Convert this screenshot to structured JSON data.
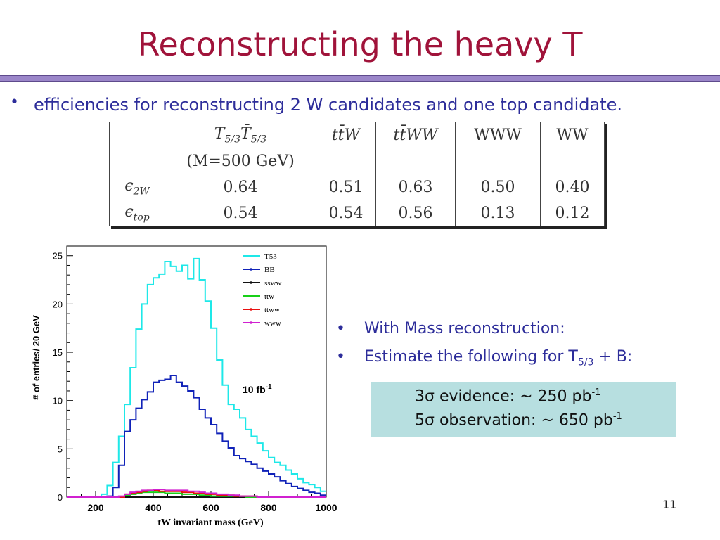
{
  "title": "Reconstructing the heavy T",
  "bullet1": "efficiencies for reconstructing 2 W candidates and one top candidate.",
  "table": {
    "header": [
      "",
      "T5/3T5/3",
      "ttW",
      "ttWW",
      "WWW",
      "WW"
    ],
    "subheader": "(M=500 GeV)",
    "rows": [
      {
        "label": "ε2W",
        "values": [
          "0.64",
          "0.51",
          "0.63",
          "0.50",
          "0.40"
        ]
      },
      {
        "label": "εtop",
        "values": [
          "0.54",
          "0.54",
          "0.56",
          "0.13",
          "0.12"
        ]
      }
    ]
  },
  "chart_data": {
    "type": "line",
    "xlabel": "tW invariant mass (GeV)",
    "ylabel": "# of entries/ 20 GeV",
    "xlim": [
      100,
      1000
    ],
    "ylim": [
      0,
      26
    ],
    "xticks": [
      200,
      400,
      600,
      800,
      1000
    ],
    "yticks": [
      0,
      5,
      10,
      15,
      20,
      25
    ],
    "annotation": "10 fb-1",
    "x": [
      110,
      130,
      150,
      170,
      190,
      210,
      230,
      250,
      270,
      290,
      310,
      330,
      350,
      370,
      390,
      410,
      430,
      450,
      470,
      490,
      510,
      530,
      550,
      570,
      590,
      610,
      630,
      650,
      670,
      690,
      710,
      730,
      750,
      770,
      790,
      810,
      830,
      850,
      870,
      890,
      910,
      930,
      950,
      970,
      990
    ],
    "series": [
      {
        "name": "T53",
        "color": "#1ee8e8",
        "values": [
          0,
          0,
          0,
          0,
          0,
          0,
          0.3,
          1.2,
          3.6,
          6.3,
          9.6,
          13.4,
          17.4,
          20.0,
          22.0,
          22.7,
          23.1,
          24.4,
          23.9,
          23.4,
          24.0,
          22.6,
          24.7,
          22.5,
          20.3,
          17.5,
          14.2,
          11.6,
          9.6,
          9.1,
          8.2,
          7.0,
          6.3,
          5.6,
          4.8,
          4.1,
          3.6,
          3.3,
          2.8,
          2.4,
          1.9,
          1.5,
          1.3,
          1.0,
          0.6
        ]
      },
      {
        "name": "BB",
        "color": "#1022b8",
        "values": [
          0,
          0,
          0,
          0,
          0,
          0,
          0,
          0.1,
          1.0,
          3.3,
          6.8,
          8.0,
          9.2,
          10.1,
          10.9,
          11.9,
          12.1,
          12.2,
          12.6,
          11.9,
          11.5,
          11.0,
          10.3,
          9.1,
          8.2,
          7.5,
          6.6,
          5.8,
          5.1,
          4.3,
          4.0,
          3.7,
          3.4,
          3.0,
          2.7,
          2.4,
          2.1,
          1.7,
          1.4,
          1.1,
          0.9,
          0.7,
          0.5,
          0.4,
          0.2
        ]
      },
      {
        "name": "ssww",
        "color": "#111111",
        "values": [
          0,
          0,
          0,
          0,
          0,
          0,
          0,
          0,
          0,
          0,
          0,
          0,
          0,
          0,
          0,
          0,
          0,
          0,
          0,
          0,
          0,
          0,
          0,
          0,
          0,
          0,
          0,
          0,
          0,
          0,
          0,
          0,
          0,
          0,
          0,
          0,
          0,
          0,
          0,
          0,
          0,
          0,
          0,
          0,
          0
        ]
      },
      {
        "name": "ttw",
        "color": "#18d018",
        "values": [
          0,
          0,
          0,
          0,
          0,
          0,
          0,
          0,
          0,
          0,
          0.2,
          0.3,
          0.4,
          0.5,
          0.5,
          0.5,
          0.5,
          0.4,
          0.4,
          0.4,
          0.3,
          0.3,
          0.3,
          0.2,
          0.2,
          0.1,
          0.1,
          0.1,
          0.1,
          0.1,
          0.1,
          0,
          0,
          0,
          0,
          0,
          0,
          0,
          0,
          0,
          0,
          0,
          0,
          0,
          0
        ]
      },
      {
        "name": "ttww",
        "color": "#e81010",
        "values": [
          0,
          0,
          0,
          0,
          0,
          0,
          0,
          0,
          0,
          0,
          0.3,
          0.4,
          0.5,
          0.6,
          0.7,
          0.7,
          0.6,
          0.6,
          0.6,
          0.6,
          0.5,
          0.5,
          0.4,
          0.4,
          0.3,
          0.3,
          0.2,
          0.2,
          0.2,
          0.1,
          0.1,
          0.1,
          0.1,
          0,
          0,
          0,
          0,
          0,
          0,
          0,
          0,
          0,
          0,
          0,
          0
        ]
      },
      {
        "name": "www",
        "color": "#d020d0",
        "values": [
          0,
          0,
          0,
          0,
          0,
          0,
          0,
          0,
          0,
          0.1,
          0.3,
          0.5,
          0.6,
          0.7,
          0.7,
          0.8,
          0.8,
          0.7,
          0.7,
          0.7,
          0.7,
          0.6,
          0.6,
          0.5,
          0.4,
          0.4,
          0.3,
          0.3,
          0.2,
          0.2,
          0.1,
          0.1,
          0.1,
          0,
          0,
          0,
          0,
          0,
          0,
          0,
          0,
          0,
          0,
          0,
          0
        ]
      }
    ]
  },
  "bullets2": [
    {
      "text": "With Mass reconstruction:"
    },
    {
      "text_before": "Estimate the following for T",
      "sub": "5/3",
      "text_after": " + B:"
    }
  ],
  "box": {
    "line1_prefix": "3",
    "line1_symbol": "σ",
    "line1_text": " evidence: ~ 250 pb",
    "line1_sup": "-1",
    "line2_prefix": "5",
    "line2_symbol": "σ",
    "line2_text": " observation: ~ 650 pb",
    "line2_sup": "-1"
  },
  "page_number": "11"
}
